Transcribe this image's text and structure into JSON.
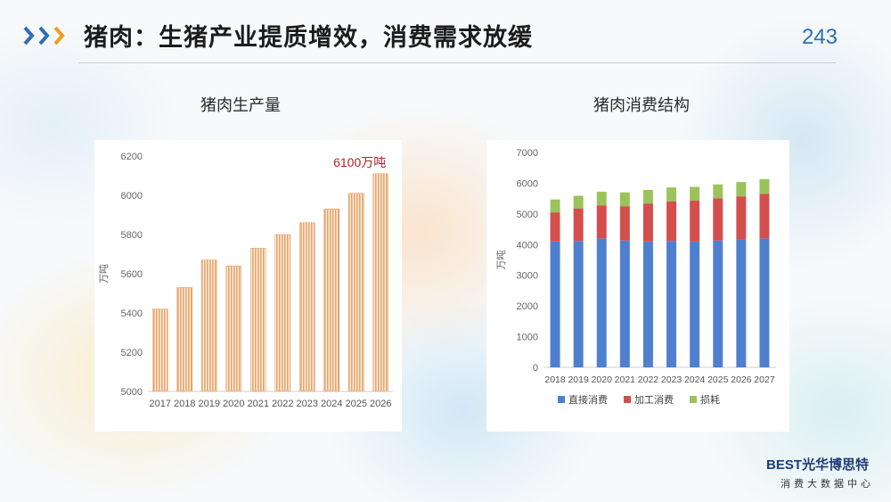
{
  "header": {
    "title": "猪肉：生猪产业提质增效，消费需求放缓",
    "page_number": "243",
    "arrow_icon": "triple-chevron-right-icon",
    "accent_colors": [
      "#2f6db5",
      "#f39c1f"
    ]
  },
  "logo": {
    "main": "BEST光华博思特",
    "sub": "消费大数据中心"
  },
  "chart_data": [
    {
      "type": "bar",
      "title": "猪肉生产量",
      "ylabel": "万吨",
      "xlabel": "",
      "categories": [
        "2017",
        "2018",
        "2019",
        "2020",
        "2021",
        "2022",
        "2023",
        "2024",
        "2025",
        "2026"
      ],
      "values": [
        5420,
        5530,
        5670,
        5640,
        5730,
        5800,
        5860,
        5930,
        6010,
        6110
      ],
      "ylim": [
        5000,
        6200
      ],
      "yticks": [
        5000,
        5200,
        5400,
        5600,
        5800,
        6000,
        6200
      ],
      "annotation": "6100万吨",
      "bar_color": "#e8a56d",
      "annotation_color": "#b0242a",
      "grid": false
    },
    {
      "type": "bar",
      "stacked": true,
      "title": "猪肉消费结构",
      "ylabel": "万吨",
      "xlabel": "",
      "categories": [
        "2018",
        "2019",
        "2020",
        "2021",
        "2022",
        "2023",
        "2024",
        "2025",
        "2026",
        "2027"
      ],
      "series": [
        {
          "name": "直接消费",
          "color": "#4f7fcf",
          "values": [
            4100,
            4120,
            4200,
            4130,
            4100,
            4120,
            4100,
            4130,
            4170,
            4200
          ]
        },
        {
          "name": "加工消费",
          "color": "#d44e4e",
          "values": [
            950,
            1050,
            1080,
            1120,
            1230,
            1290,
            1330,
            1380,
            1400,
            1450
          ]
        },
        {
          "name": "损耗",
          "color": "#9cc25b",
          "values": [
            420,
            420,
            440,
            450,
            450,
            450,
            450,
            450,
            470,
            480
          ]
        }
      ],
      "ylim": [
        0,
        7000
      ],
      "yticks": [
        0,
        1000,
        2000,
        3000,
        4000,
        5000,
        6000,
        7000
      ],
      "legend_position": "bottom",
      "grid": false
    }
  ]
}
